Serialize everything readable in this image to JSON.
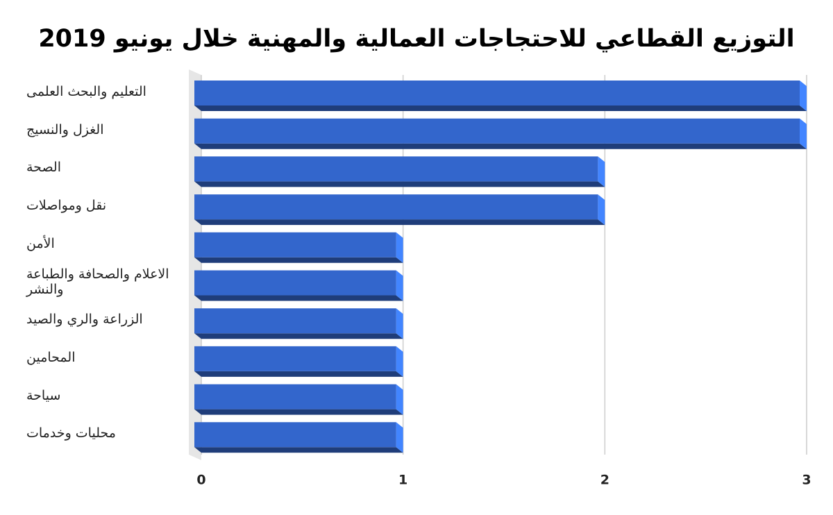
{
  "chart_data": {
    "type": "bar",
    "orientation": "horizontal",
    "title": "التوزيع القطاعي للاحتجاجات العمالية والمهنية خلال يونيو 2019",
    "categories": [
      "التعليم والبحث العلمى",
      "الغزل والنسيج",
      "الصحة",
      "نقل ومواصلات",
      "الأمن",
      "الاعلام والصحافة والطباعة والنشر",
      "الزراعة والري والصيد",
      "المحامين",
      "سياحة",
      "محليات وخدمات"
    ],
    "values": [
      3,
      3,
      2,
      2,
      1,
      1,
      1,
      1,
      1,
      1
    ],
    "color": "#3366cc",
    "xlim": [
      0,
      3
    ],
    "xticks": [
      0,
      1,
      2,
      3
    ],
    "grid": true
  }
}
